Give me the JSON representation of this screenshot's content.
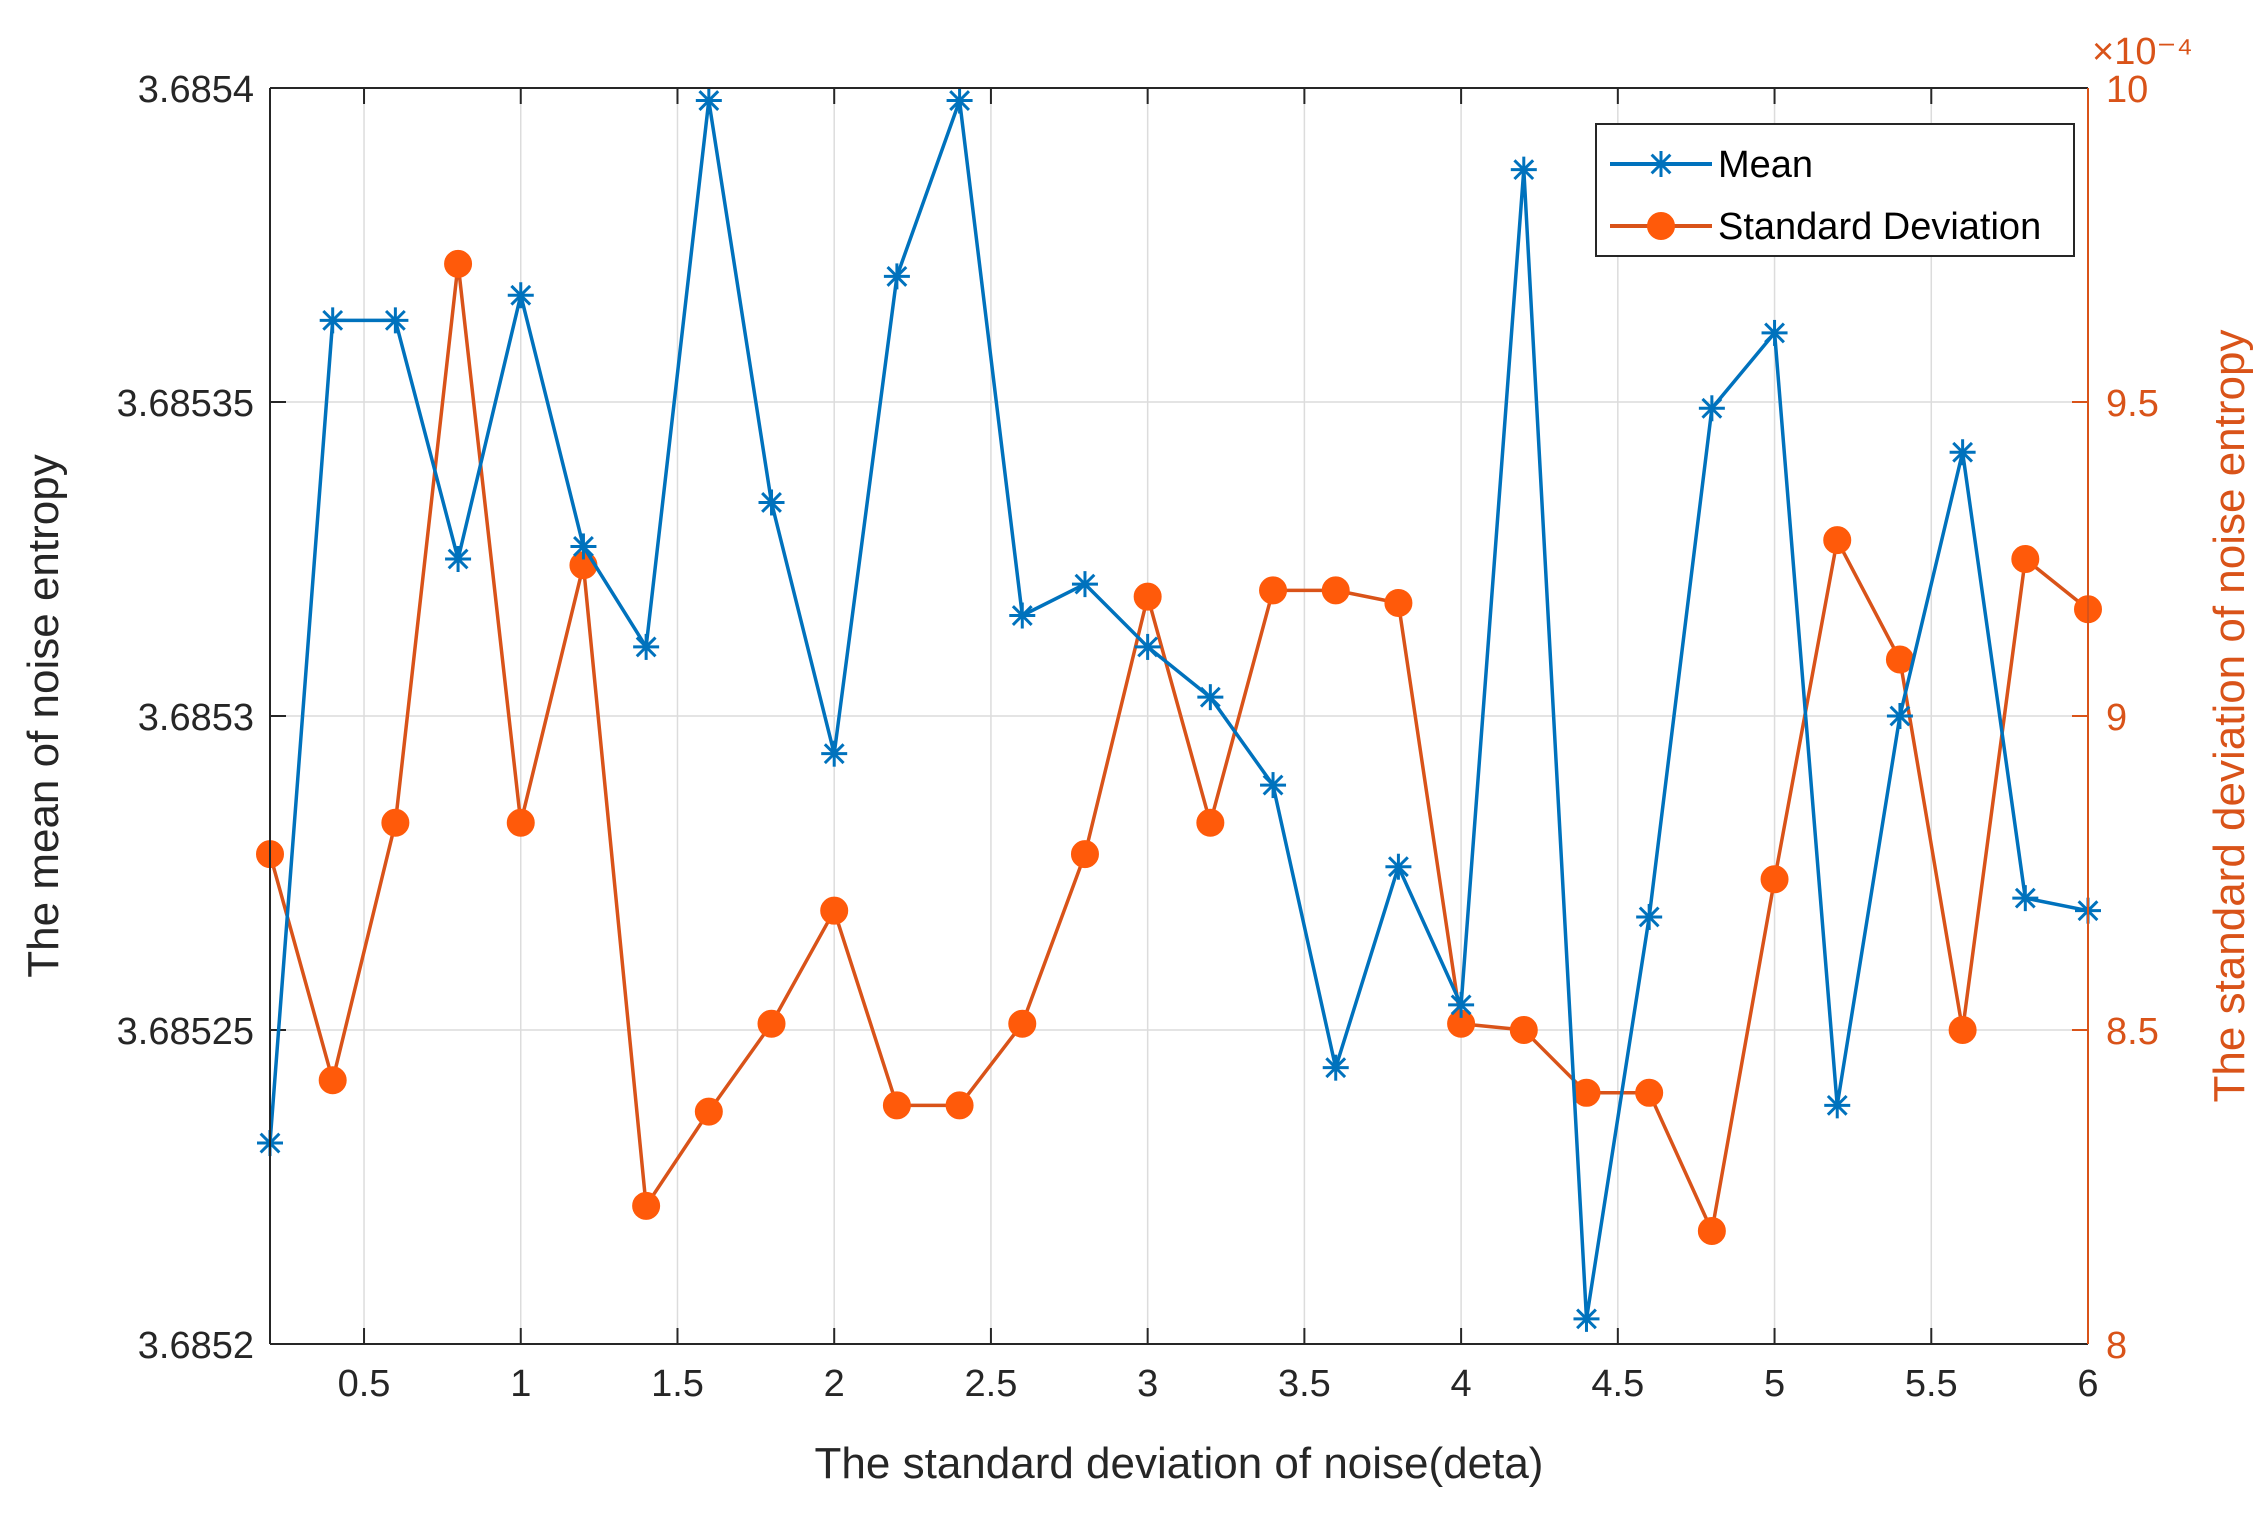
{
  "chart_data": {
    "type": "line",
    "x": [
      0.2,
      0.4,
      0.6,
      0.8,
      1.0,
      1.2,
      1.4,
      1.6,
      1.8,
      2.0,
      2.2,
      2.4,
      2.6,
      2.8,
      3.0,
      3.2,
      3.4,
      3.6,
      3.8,
      4.0,
      4.2,
      4.4,
      4.6,
      4.8,
      5.0,
      5.2,
      5.4,
      5.6,
      5.8,
      6.0
    ],
    "xlabel": "The standard deviation of noise(deta)",
    "xlim": [
      0.2,
      6
    ],
    "xticks": [
      0.5,
      1,
      1.5,
      2,
      2.5,
      3,
      3.5,
      4,
      4.5,
      5,
      5.5,
      6
    ],
    "xtick_labels": [
      "0.5",
      "1",
      "1.5",
      "2",
      "2.5",
      "3",
      "3.5",
      "4",
      "4.5",
      "5",
      "5.5",
      "6"
    ],
    "y_left": {
      "label": "The mean of noise entropy",
      "lim": [
        3.6852,
        3.6854
      ],
      "ticks": [
        3.6852,
        3.68525,
        3.6853,
        3.68535,
        3.6854
      ],
      "tick_labels": [
        "3.6852",
        "3.68525",
        "3.6853",
        "3.68535",
        "3.6854"
      ]
    },
    "y_right": {
      "label": "The standard deviation of noise entropy",
      "lim": [
        8,
        10
      ],
      "ticks": [
        8,
        8.5,
        9,
        9.5,
        10
      ],
      "tick_labels": [
        "8",
        "8.5",
        "9",
        "9.5",
        "10"
      ],
      "exponent_label": "×10⁻⁴",
      "color": "#d95319"
    },
    "series": [
      {
        "name": "Mean",
        "axis": "left",
        "color": "#0072bd",
        "marker": "asterisk",
        "values": [
          3.685232,
          3.685363,
          3.685363,
          3.685325,
          3.685367,
          3.685327,
          3.685311,
          3.685398,
          3.685334,
          3.685294,
          3.68537,
          3.685398,
          3.685316,
          3.685321,
          3.685311,
          3.685303,
          3.685289,
          3.685244,
          3.685276,
          3.685254,
          3.685387,
          3.685204,
          3.685268,
          3.685349,
          3.685361,
          3.685238,
          3.6853,
          3.685342,
          3.685271,
          3.685269
        ]
      },
      {
        "name": "Standard Deviation",
        "axis": "right",
        "color": "#d95319",
        "marker": "circle",
        "values": [
          8.78,
          8.42,
          8.83,
          9.72,
          8.83,
          9.24,
          8.22,
          8.37,
          8.51,
          8.69,
          8.38,
          8.38,
          8.51,
          8.78,
          9.19,
          8.83,
          9.2,
          9.2,
          9.18,
          8.51,
          8.5,
          8.4,
          8.4,
          8.18,
          8.74,
          9.28,
          9.09,
          8.5,
          9.25,
          9.17
        ]
      }
    ],
    "legend_position": "top-right",
    "grid": true
  }
}
